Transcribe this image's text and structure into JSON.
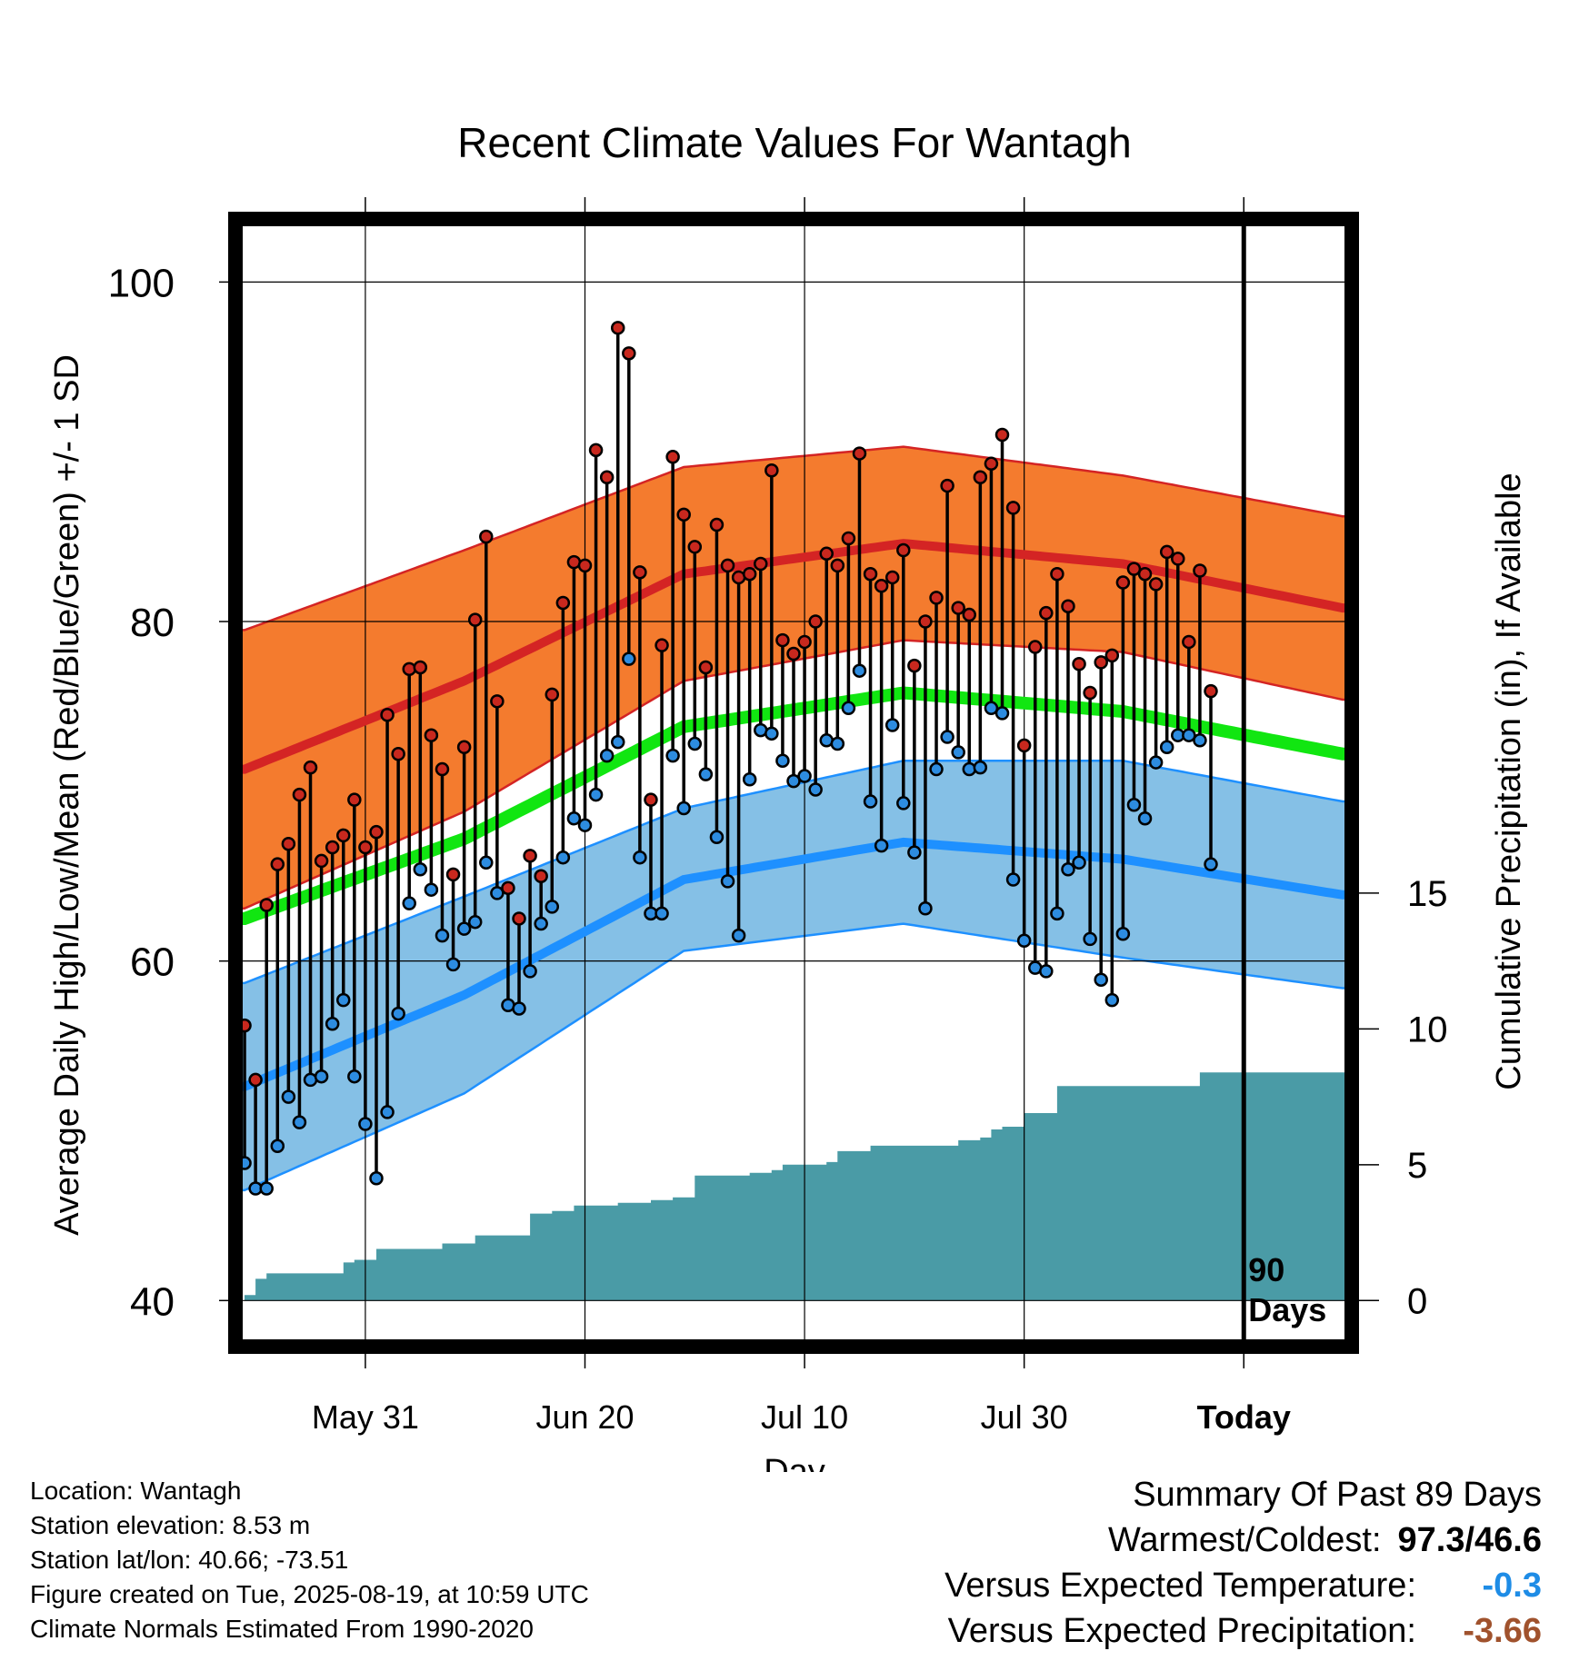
{
  "title": "Recent Climate Values For Wantagh",
  "chart_data": {
    "type": "line",
    "title": "Recent Climate Values For Wantagh",
    "xlabel": "Day",
    "ylabel": "Average Daily High/Low/Mean (Red/Blue/Green) +/- 1 SD",
    "y2label": "Cumulative Precipitation (in), If Available",
    "x_tick_labels": [
      "May 31",
      "Jun 20",
      "Jul 10",
      "Jul 30",
      "Today"
    ],
    "x_tick_days": [
      0,
      20,
      40,
      60,
      80
    ],
    "xlim": [
      -11.5,
      89.5
    ],
    "ylim": [
      37.5,
      103.5
    ],
    "y_ticks": [
      40,
      60,
      80,
      100
    ],
    "y2_ticks": [
      0,
      5,
      10,
      15
    ],
    "y2lim": [
      0,
      30
    ],
    "today_marker_label": "90\nDays",
    "normals_days": [
      -11,
      9,
      29,
      49,
      69,
      89
    ],
    "normal_high": [
      71.3,
      76.5,
      82.8,
      84.6,
      83.4,
      80.8
    ],
    "normal_high_sd": [
      8.2,
      7.7,
      6.3,
      5.7,
      5.2,
      5.4
    ],
    "normal_mean": [
      62.5,
      67.2,
      73.8,
      75.8,
      74.7,
      72.2
    ],
    "normal_low": [
      52.6,
      58.0,
      64.8,
      67.0,
      66.0,
      63.9
    ],
    "normal_low_sd": [
      6.1,
      5.8,
      4.2,
      4.8,
      5.8,
      5.5
    ],
    "daily_start_day": -11,
    "daily_high": [
      56.2,
      53.0,
      63.3,
      65.7,
      66.9,
      69.8,
      71.4,
      65.9,
      66.7,
      67.4,
      69.5,
      66.7,
      67.6,
      74.5,
      72.2,
      77.2,
      77.3,
      73.3,
      71.3,
      65.1,
      72.6,
      80.1,
      85.0,
      75.3,
      64.3,
      62.5,
      66.2,
      65.0,
      75.7,
      81.1,
      83.5,
      83.3,
      90.1,
      88.5,
      97.3,
      95.8,
      82.9,
      69.5,
      78.6,
      89.7,
      86.3,
      84.4,
      77.3,
      85.7,
      83.3,
      82.6,
      82.8,
      83.4,
      88.9,
      78.9,
      78.1,
      78.8,
      80.0,
      84.0,
      83.3,
      84.9,
      89.9,
      82.8,
      82.1,
      82.6,
      84.2,
      77.4,
      80.0,
      81.4,
      88.0,
      80.8,
      80.4,
      88.5,
      89.3,
      91.0,
      86.7,
      72.7,
      78.5,
      80.5,
      82.8,
      80.9,
      77.5,
      75.8,
      77.6,
      78.0,
      82.3,
      83.1,
      82.8,
      82.2,
      84.1,
      83.7,
      78.8,
      83.0,
      75.9
    ],
    "daily_low": [
      48.1,
      46.6,
      46.6,
      49.1,
      52.0,
      50.5,
      53.0,
      53.2,
      56.3,
      57.7,
      53.2,
      50.4,
      47.2,
      51.1,
      56.9,
      63.4,
      65.4,
      64.2,
      61.5,
      59.8,
      61.9,
      62.3,
      65.8,
      64.0,
      57.4,
      57.2,
      59.4,
      62.2,
      63.2,
      66.1,
      68.4,
      68.0,
      69.8,
      72.1,
      72.9,
      77.8,
      66.1,
      62.8,
      62.8,
      72.1,
      69.0,
      72.8,
      71.0,
      67.3,
      64.7,
      61.5,
      70.7,
      73.6,
      73.4,
      71.8,
      70.6,
      70.9,
      70.1,
      73.0,
      72.8,
      74.9,
      77.1,
      69.4,
      66.8,
      73.9,
      69.3,
      66.4,
      63.1,
      71.3,
      73.2,
      72.3,
      71.3,
      71.4,
      74.9,
      74.6,
      64.8,
      61.2,
      59.6,
      59.4,
      62.8,
      65.4,
      65.8,
      61.3,
      58.9,
      57.7,
      61.6,
      69.2,
      68.4,
      71.7,
      72.6,
      73.3,
      73.3,
      73.0,
      65.7
    ],
    "precip_days": [
      -11,
      -10,
      -9,
      -4,
      -2,
      -1,
      1,
      6,
      7,
      8,
      10,
      14,
      15,
      17,
      19,
      21,
      23,
      24,
      26,
      28,
      30,
      31,
      34,
      35,
      37,
      38,
      40,
      42,
      43,
      45,
      46,
      50,
      54,
      56,
      57,
      58,
      59,
      60,
      62,
      63,
      64,
      65,
      66,
      67,
      68,
      69,
      70,
      71,
      72,
      73,
      74,
      75,
      76,
      77,
      78,
      79,
      80,
      81,
      82,
      83,
      84,
      85,
      86,
      87,
      88,
      89
    ],
    "precip_cum": [
      0.2,
      0.8,
      1.0,
      1.0,
      1.4,
      1.5,
      1.9,
      1.9,
      2.1,
      2.1,
      2.4,
      2.4,
      3.2,
      3.3,
      3.5,
      3.5,
      3.6,
      3.6,
      3.7,
      3.8,
      4.6,
      4.6,
      4.6,
      4.7,
      4.8,
      5.0,
      5.0,
      5.1,
      5.5,
      5.5,
      5.7,
      5.7,
      5.9,
      6.0,
      6.3,
      6.4,
      6.4,
      6.9,
      6.9,
      7.9,
      7.9,
      7.9,
      7.9,
      7.9,
      7.9,
      7.9,
      7.9,
      7.9,
      7.9,
      7.9,
      7.9,
      7.9,
      8.4,
      8.4,
      8.4,
      8.4,
      8.4,
      8.4,
      8.4,
      8.4,
      8.4,
      8.4,
      8.4,
      8.4,
      8.4,
      8.4
    ],
    "colors": {
      "high_band": "#f47b2e",
      "high_line": "#d42424",
      "low_band": "#85c0e6",
      "low_line": "#1e90ff",
      "mean_line": "#11e611",
      "precip_fill": "#4a9ba6",
      "high_dot": "#c8281e",
      "low_dot": "#2d8ce0"
    }
  },
  "footer": {
    "location": "Location: Wantagh",
    "elevation": "Station elevation: 8.53 m",
    "latlon": "Station lat/lon: 40.66; -73.51",
    "created": "Figure created on Tue, 2025-08-19, at 10:59 UTC",
    "normals": "Climate Normals Estimated From 1990-2020"
  },
  "summary": {
    "heading": "Summary Of Past 89 Days",
    "warm_cold_label": "Warmest/Coldest:",
    "warm_cold_value": "97.3/46.6",
    "temp_label": "Versus Expected Temperature:",
    "temp_value": "-0.3",
    "temp_color": "#1e8ce6",
    "precip_label": "Versus Expected Precipitation:",
    "precip_value": "-3.66",
    "precip_color": "#a0522d"
  }
}
